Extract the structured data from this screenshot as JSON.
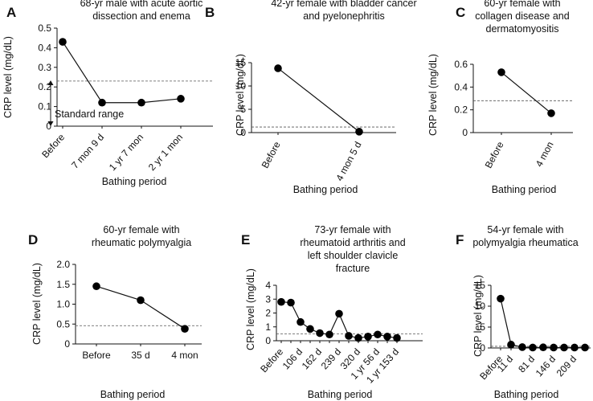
{
  "figure": {
    "xlabel": "Bathing period",
    "ylabel": "CRP level (mg/dL)"
  },
  "chart_data": [
    {
      "panel": "A",
      "type": "line",
      "title": [
        "68-yr male with acute aortic",
        "dissection and enema"
      ],
      "xlabel": "Bathing period",
      "ylabel": "CRP level (mg/dL)",
      "categories": [
        "Before",
        "7 mon 9 d",
        "1 yr 7 mon",
        "2 yr 1 mon"
      ],
      "values": [
        0.43,
        0.12,
        0.12,
        0.14
      ],
      "ylim": [
        0,
        0.5
      ],
      "yticks": [
        0,
        0.1,
        0.2,
        0.3,
        0.4,
        0.5
      ],
      "tick_labels": [
        "0",
        "0.1",
        "0.2",
        "0.3",
        "0.4",
        "0.5"
      ],
      "reference": 0.23,
      "annotation": "Standard range"
    },
    {
      "panel": "B",
      "type": "line",
      "title": [
        "42-yr female with bladder cancer",
        "and pyelonephritis"
      ],
      "xlabel": "Bathing period",
      "ylabel": "CRP level (mg/dL)",
      "categories": [
        "Before",
        "4 mon 5 d"
      ],
      "values": [
        13.8,
        0.2
      ],
      "ylim": [
        0,
        15
      ],
      "yticks": [
        0,
        5,
        10,
        15
      ],
      "tick_labels": [
        "0",
        "5",
        "10",
        "15"
      ],
      "reference": 1.2
    },
    {
      "panel": "C",
      "type": "line",
      "title": [
        "60-yr female with",
        "collagen disease and",
        "dermatomyositis"
      ],
      "xlabel": "Bathing period",
      "ylabel": "CRP level (mg/dL)",
      "categories": [
        "Before",
        "4 mon"
      ],
      "values": [
        0.53,
        0.17
      ],
      "ylim": [
        0,
        0.6
      ],
      "yticks": [
        0,
        0.2,
        0.4,
        0.6
      ],
      "tick_labels": [
        "0",
        "0.2",
        "0.4",
        "0.6"
      ],
      "reference": 0.28
    },
    {
      "panel": "D",
      "type": "line",
      "title": [
        "60-yr female with",
        "rheumatic polymyalgia"
      ],
      "xlabel": "Bathing period",
      "ylabel": "CRP level (mg/dL)",
      "categories": [
        "Before",
        "35 d",
        "4 mon"
      ],
      "values": [
        1.45,
        1.1,
        0.38
      ],
      "ylim": [
        0,
        2.0
      ],
      "yticks": [
        0,
        0.5,
        1.0,
        1.5,
        2.0
      ],
      "tick_labels": [
        "0",
        "0.5",
        "1.0",
        "1.5",
        "2.0"
      ],
      "reference": 0.46
    },
    {
      "panel": "E",
      "type": "line",
      "title": [
        "73-yr female with",
        "rheumatoid arthritis and",
        "left shoulder clavicle",
        "fracture"
      ],
      "xlabel": "Bathing period",
      "ylabel": "CRP level (mg/dL)",
      "categories": [
        "Before",
        "",
        "106 d",
        "",
        "162 d",
        "",
        "239 d",
        "",
        "320 d",
        "",
        "1 yr 56 d",
        "",
        "1 yr 153 d"
      ],
      "values": [
        2.8,
        2.75,
        1.35,
        0.85,
        0.55,
        0.45,
        1.95,
        0.35,
        0.2,
        0.3,
        0.45,
        0.3,
        0.2
      ],
      "ylim": [
        0,
        4
      ],
      "yticks": [
        0,
        1,
        2,
        3,
        4
      ],
      "tick_labels": [
        "0",
        "1",
        "2",
        "3",
        "4"
      ],
      "reference": 0.5
    },
    {
      "panel": "F",
      "type": "line",
      "title": [
        "54-yr female with",
        "polymyalgia rheumatica"
      ],
      "xlabel": "Bathing period",
      "ylabel": "CRP level (mg/dL)",
      "categories": [
        "Before",
        "11 d",
        "",
        "81 d",
        "",
        "146 d",
        "",
        "209 d",
        ""
      ],
      "values": [
        11.8,
        0.8,
        0.2,
        0.1,
        0.15,
        0.1,
        0.1,
        0.1,
        0.1
      ],
      "ylim": [
        0,
        15
      ],
      "yticks": [
        0,
        5,
        10,
        15
      ],
      "tick_labels": [
        "0",
        "5",
        "10",
        "15"
      ],
      "reference": 0.4
    }
  ]
}
